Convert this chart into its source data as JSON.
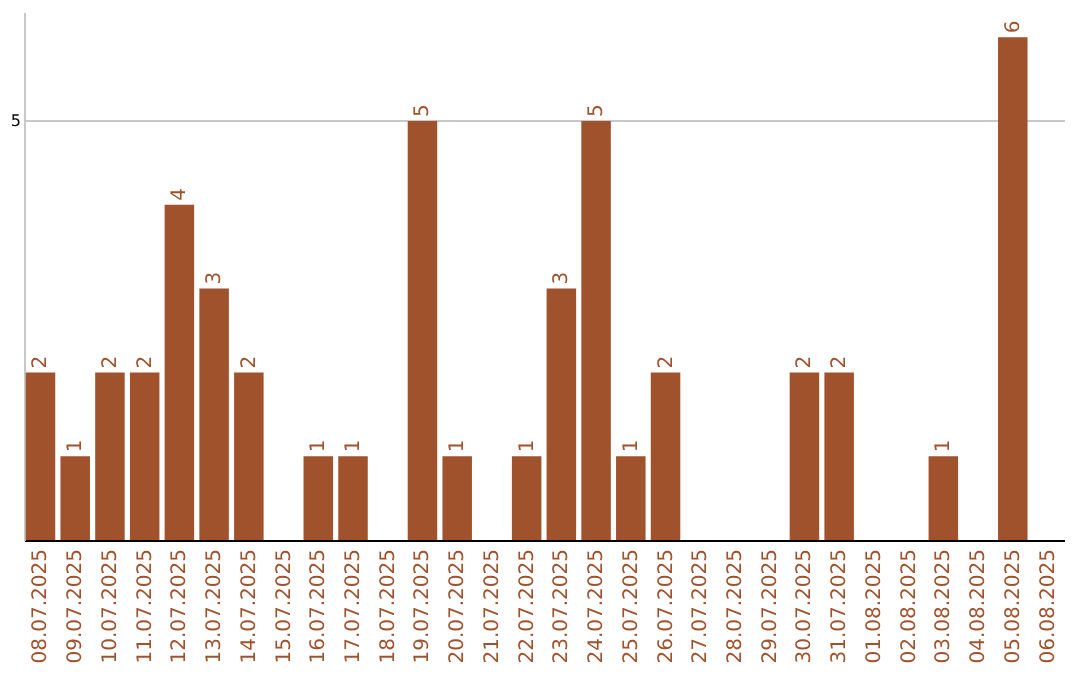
{
  "chart_data": {
    "type": "bar",
    "categories": [
      "08.07.2025",
      "09.07.2025",
      "10.07.2025",
      "11.07.2025",
      "12.07.2025",
      "13.07.2025",
      "14.07.2025",
      "15.07.2025",
      "16.07.2025",
      "17.07.2025",
      "18.07.2025",
      "19.07.2025",
      "20.07.2025",
      "21.07.2025",
      "22.07.2025",
      "23.07.2025",
      "24.07.2025",
      "25.07.2025",
      "26.07.2025",
      "27.07.2025",
      "28.07.2025",
      "29.07.2025",
      "30.07.2025",
      "31.07.2025",
      "01.08.2025",
      "02.08.2025",
      "03.08.2025",
      "04.08.2025",
      "05.08.2025",
      "06.08.2025"
    ],
    "values": [
      2,
      1,
      2,
      2,
      4,
      3,
      2,
      0,
      1,
      1,
      0,
      5,
      1,
      0,
      1,
      3,
      5,
      1,
      2,
      0,
      0,
      0,
      2,
      2,
      0,
      0,
      1,
      0,
      6,
      0
    ],
    "value_labels": [
      "2",
      "1",
      "2",
      "2",
      "4",
      "3",
      "2",
      null,
      "1",
      "1",
      null,
      "5",
      "1",
      null,
      "1",
      "3",
      "5",
      "1",
      "2",
      null,
      null,
      null,
      "2",
      "2",
      null,
      null,
      "1",
      null,
      "6",
      null
    ],
    "color": "#a0522d",
    "ylim": [
      0,
      6.3
    ],
    "yticks": [
      5
    ],
    "grid": "y"
  }
}
